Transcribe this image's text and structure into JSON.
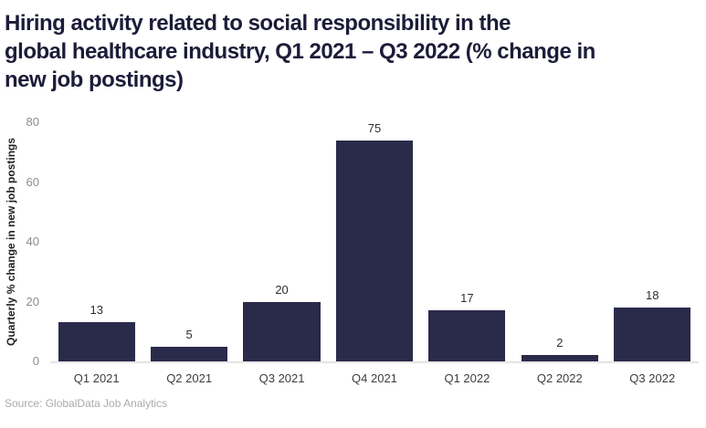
{
  "title": "Hiring activity related to social responsibility in the\nglobal healthcare industry, Q1 2021 – Q3 2022 (% change in\nnew job postings)",
  "source": "Source: GlobalData Job Analytics",
  "colors": {
    "bar": "#2a2a4b",
    "title_text": "#1c1c39",
    "axis_line": "#e4e4e4",
    "tick_text": "#8c8c8c",
    "background": "#ffffff"
  },
  "chart_data": {
    "type": "bar",
    "title": "Hiring activity related to social responsibility in the global healthcare industry, Q1 2021 – Q3 2022 (% change in new job postings)",
    "categories": [
      "Q1 2021",
      "Q2 2021",
      "Q3 2021",
      "Q4 2021",
      "Q1 2022",
      "Q2 2022",
      "Q3 2022"
    ],
    "values": [
      13,
      5,
      20,
      75,
      17,
      2,
      18
    ],
    "xlabel": "",
    "ylabel": "Quarterly % change in new job postings",
    "yticks": [
      0,
      20,
      40,
      60,
      80
    ],
    "ylim": [
      0,
      80
    ],
    "grid": false,
    "legend": false,
    "data_labels": true,
    "bar_color": "#2a2a4b",
    "source": "Source: GlobalData Job Analytics"
  }
}
